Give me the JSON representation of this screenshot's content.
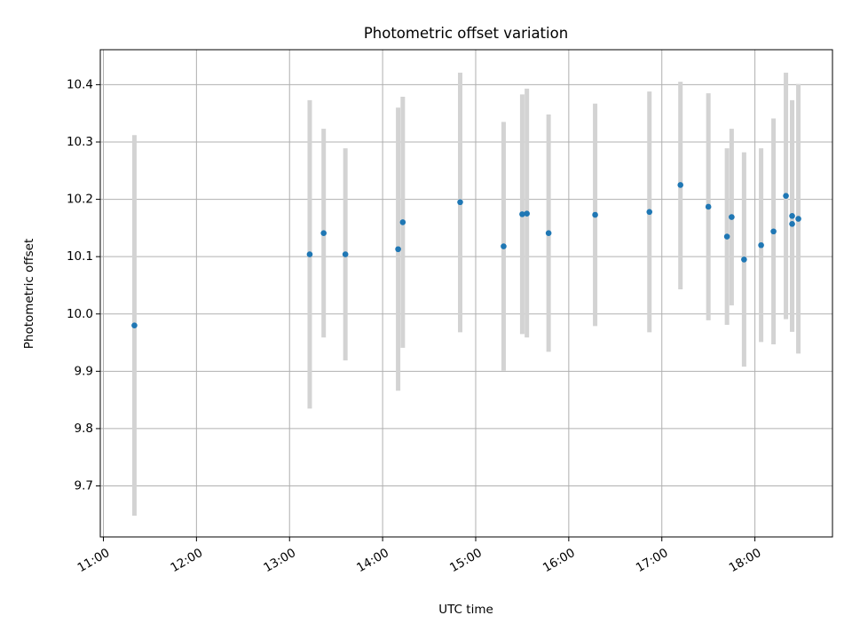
{
  "chart_data": {
    "type": "scatter",
    "title": "Photometric offset variation",
    "xlabel": "UTC time",
    "ylabel": "Photometric offset",
    "xlim": [
      "10:58",
      "18:50"
    ],
    "ylim": [
      9.611,
      10.461
    ],
    "grid": true,
    "x_ticks": [
      "11:00",
      "12:00",
      "13:00",
      "14:00",
      "15:00",
      "16:00",
      "17:00",
      "18:00"
    ],
    "y_ticks": [
      9.7,
      9.8,
      9.9,
      10.0,
      10.1,
      10.2,
      10.3,
      10.4
    ],
    "point_color": "#1f77b4",
    "errorbar_color": "#d3d3d3",
    "points": [
      {
        "x": "11:20",
        "y": 9.98,
        "ymin": 9.648,
        "ymax": 10.312
      },
      {
        "x": "13:13",
        "y": 10.104,
        "ymin": 9.835,
        "ymax": 10.373
      },
      {
        "x": "13:22",
        "y": 10.141,
        "ymin": 9.959,
        "ymax": 10.323
      },
      {
        "x": "13:36",
        "y": 10.104,
        "ymin": 9.919,
        "ymax": 10.289
      },
      {
        "x": "14:10",
        "y": 10.113,
        "ymin": 9.866,
        "ymax": 10.36
      },
      {
        "x": "14:13",
        "y": 10.16,
        "ymin": 9.941,
        "ymax": 10.379
      },
      {
        "x": "14:50",
        "y": 10.195,
        "ymin": 9.968,
        "ymax": 10.421
      },
      {
        "x": "15:18",
        "y": 10.118,
        "ymin": 9.901,
        "ymax": 10.335
      },
      {
        "x": "15:30",
        "y": 10.174,
        "ymin": 9.965,
        "ymax": 10.383
      },
      {
        "x": "15:33",
        "y": 10.175,
        "ymin": 9.959,
        "ymax": 10.393
      },
      {
        "x": "15:47",
        "y": 10.141,
        "ymin": 9.934,
        "ymax": 10.348
      },
      {
        "x": "16:17",
        "y": 10.173,
        "ymin": 9.979,
        "ymax": 10.367
      },
      {
        "x": "16:52",
        "y": 10.178,
        "ymin": 9.968,
        "ymax": 10.388
      },
      {
        "x": "17:12",
        "y": 10.225,
        "ymin": 10.043,
        "ymax": 10.405
      },
      {
        "x": "17:30",
        "y": 10.187,
        "ymin": 9.989,
        "ymax": 10.385
      },
      {
        "x": "17:42",
        "y": 10.135,
        "ymin": 9.981,
        "ymax": 10.289
      },
      {
        "x": "17:45",
        "y": 10.169,
        "ymin": 10.015,
        "ymax": 10.323
      },
      {
        "x": "17:53",
        "y": 10.095,
        "ymin": 9.908,
        "ymax": 10.282
      },
      {
        "x": "18:04",
        "y": 10.12,
        "ymin": 9.951,
        "ymax": 10.289
      },
      {
        "x": "18:12",
        "y": 10.144,
        "ymin": 9.947,
        "ymax": 10.341
      },
      {
        "x": "18:20",
        "y": 10.206,
        "ymin": 9.991,
        "ymax": 10.421
      },
      {
        "x": "18:24",
        "y": 10.171,
        "ymin": 9.969,
        "ymax": 10.373
      },
      {
        "x": "18:24",
        "y": 10.157,
        "ymin": 9.969,
        "ymax": 10.345
      },
      {
        "x": "18:28",
        "y": 10.166,
        "ymin": 9.931,
        "ymax": 10.401
      }
    ]
  }
}
